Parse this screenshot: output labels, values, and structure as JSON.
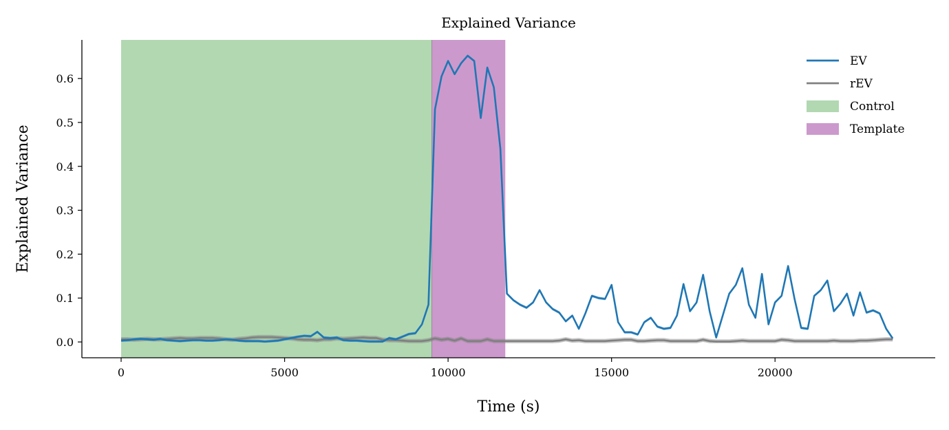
{
  "chart_data": {
    "type": "line",
    "title": "Explained Variance",
    "xlabel": "Time (s)",
    "ylabel": "Explained Variance",
    "xlim": [
      -1200,
      24900
    ],
    "ylim": [
      -0.036,
      0.688
    ],
    "xticks": [
      0,
      5000,
      10000,
      15000,
      20000
    ],
    "xtick_labels": [
      "0",
      "5000",
      "10000",
      "15000",
      "20000"
    ],
    "yticks": [
      0.0,
      0.1,
      0.2,
      0.3,
      0.4,
      0.5,
      0.6
    ],
    "ytick_labels": [
      "0.0",
      "0.1",
      "0.2",
      "0.3",
      "0.4",
      "0.5",
      "0.6"
    ],
    "grid": false,
    "legend_position": "top-right",
    "x_step": 200,
    "regions": [
      {
        "name": "Control",
        "x0": 0,
        "x1": 9500,
        "color": "#b2d8b2"
      },
      {
        "name": "Template",
        "x0": 9500,
        "x1": 11750,
        "color": "#cc99cc"
      }
    ],
    "series": [
      {
        "name": "EV",
        "color": "#1f77b4",
        "band": 0.003,
        "values": [
          0.003,
          0.004,
          0.006,
          0.007,
          0.006,
          0.005,
          0.007,
          0.004,
          0.003,
          0.002,
          0.003,
          0.004,
          0.004,
          0.003,
          0.003,
          0.004,
          0.006,
          0.005,
          0.003,
          0.002,
          0.002,
          0.002,
          0.001,
          0.002,
          0.003,
          0.006,
          0.009,
          0.012,
          0.014,
          0.013,
          0.023,
          0.01,
          0.009,
          0.01,
          0.004,
          0.003,
          0.003,
          0.002,
          0.001,
          0.001,
          0.001,
          0.009,
          0.006,
          0.012,
          0.018,
          0.02,
          0.04,
          0.085,
          0.53,
          0.605,
          0.64,
          0.61,
          0.635,
          0.652,
          0.64,
          0.51,
          0.625,
          0.58,
          0.44,
          0.11,
          0.095,
          0.085,
          0.078,
          0.09,
          0.118,
          0.09,
          0.075,
          0.067,
          0.047,
          0.06,
          0.03,
          0.065,
          0.105,
          0.1,
          0.098,
          0.13,
          0.045,
          0.022,
          0.022,
          0.017,
          0.045,
          0.055,
          0.035,
          0.03,
          0.032,
          0.06,
          0.132,
          0.07,
          0.09,
          0.153,
          0.07,
          0.01,
          0.06,
          0.11,
          0.13,
          0.168,
          0.085,
          0.055,
          0.155,
          0.04,
          0.09,
          0.105,
          0.173,
          0.097,
          0.032,
          0.03,
          0.105,
          0.118,
          0.14,
          0.07,
          0.087,
          0.11,
          0.06,
          0.113,
          0.067,
          0.072,
          0.065,
          0.03,
          0.008
        ]
      },
      {
        "name": "rEV",
        "color": "#808080",
        "band": 0.005,
        "values": [
          0.006,
          0.006,
          0.005,
          0.006,
          0.007,
          0.006,
          0.006,
          0.007,
          0.008,
          0.009,
          0.008,
          0.008,
          0.009,
          0.009,
          0.009,
          0.008,
          0.006,
          0.005,
          0.007,
          0.008,
          0.01,
          0.011,
          0.011,
          0.011,
          0.01,
          0.009,
          0.008,
          0.006,
          0.005,
          0.005,
          0.004,
          0.006,
          0.006,
          0.008,
          0.007,
          0.008,
          0.009,
          0.01,
          0.009,
          0.009,
          0.005,
          0.004,
          0.004,
          0.003,
          0.002,
          0.002,
          0.002,
          0.004,
          0.008,
          0.005,
          0.007,
          0.003,
          0.008,
          0.002,
          0.002,
          0.002,
          0.006,
          0.002,
          0.002,
          0.002,
          0.002,
          0.002,
          0.002,
          0.002,
          0.002,
          0.002,
          0.002,
          0.003,
          0.006,
          0.003,
          0.004,
          0.002,
          0.002,
          0.002,
          0.002,
          0.003,
          0.004,
          0.005,
          0.005,
          0.002,
          0.002,
          0.003,
          0.004,
          0.004,
          0.002,
          0.002,
          0.002,
          0.002,
          0.002,
          0.005,
          0.002,
          0.001,
          0.001,
          0.001,
          0.002,
          0.003,
          0.002,
          0.002,
          0.002,
          0.002,
          0.002,
          0.005,
          0.004,
          0.002,
          0.002,
          0.002,
          0.002,
          0.002,
          0.002,
          0.003,
          0.002,
          0.002,
          0.002,
          0.003,
          0.003,
          0.004,
          0.005,
          0.006,
          0.006
        ]
      }
    ]
  }
}
